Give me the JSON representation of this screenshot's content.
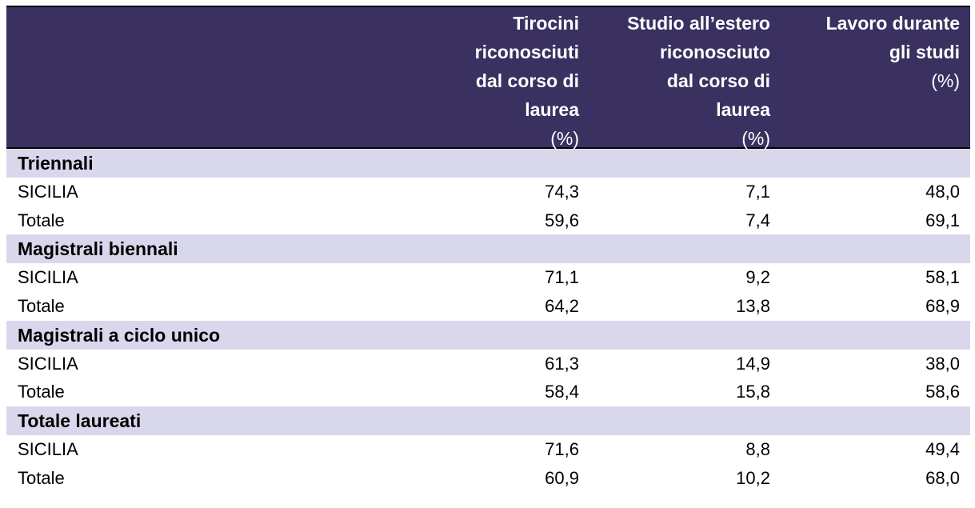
{
  "table": {
    "columns": [
      {
        "lines": [
          "Tirocini",
          "riconosciuti",
          "dal corso di",
          "laurea"
        ],
        "unit": "(%)"
      },
      {
        "lines": [
          "Studio all’estero",
          "riconosciuto",
          "dal corso di",
          "laurea"
        ],
        "unit": "(%)"
      },
      {
        "lines": [
          "Lavoro durante",
          "gli studi"
        ],
        "unit": "(%)"
      }
    ],
    "sections": [
      {
        "title": "Triennali",
        "rows": [
          {
            "label": "SICILIA",
            "values": [
              "74,3",
              "7,1",
              "48,0"
            ]
          },
          {
            "label": "Totale",
            "values": [
              "59,6",
              "7,4",
              "69,1"
            ]
          }
        ]
      },
      {
        "title": "Magistrali biennali",
        "rows": [
          {
            "label": "SICILIA",
            "values": [
              "71,1",
              "9,2",
              "58,1"
            ]
          },
          {
            "label": "Totale",
            "values": [
              "64,2",
              "13,8",
              "68,9"
            ]
          }
        ]
      },
      {
        "title": "Magistrali a ciclo unico",
        "rows": [
          {
            "label": "SICILIA",
            "values": [
              "61,3",
              "14,9",
              "38,0"
            ]
          },
          {
            "label": "Totale",
            "values": [
              "58,4",
              "15,8",
              "58,6"
            ]
          }
        ]
      },
      {
        "title": "Totale laureati",
        "rows": [
          {
            "label": "SICILIA",
            "values": [
              "71,6",
              "8,8",
              "49,4"
            ]
          },
          {
            "label": "Totale",
            "values": [
              "60,9",
              "10,2",
              "68,0"
            ]
          }
        ]
      }
    ]
  }
}
